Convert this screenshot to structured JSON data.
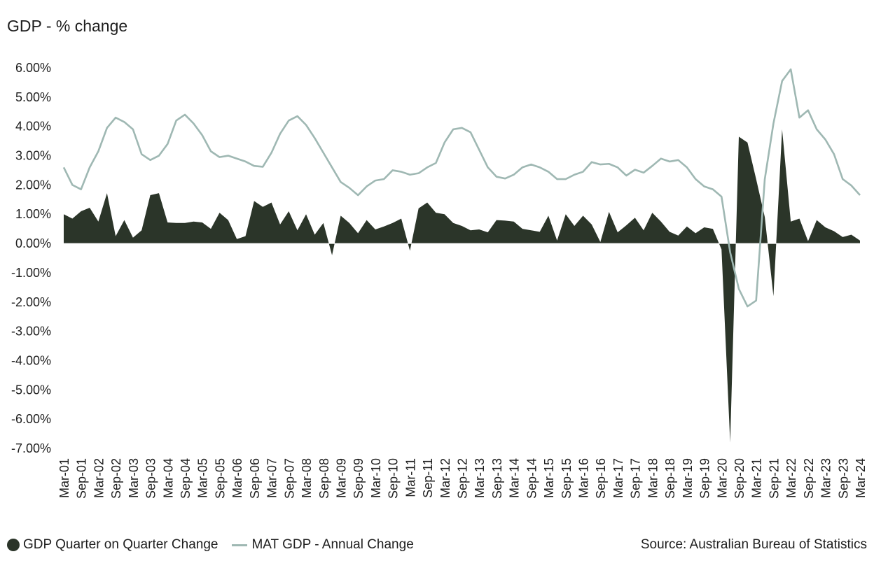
{
  "chart_data": {
    "type": "area",
    "title": "GDP - % change",
    "ylim": [
      -7,
      6
    ],
    "yticks": [
      "6.00%",
      "5.00%",
      "4.00%",
      "3.00%",
      "2.00%",
      "1.00%",
      "0.00%",
      "-1.00%",
      "-2.00%",
      "-3.00%",
      "-4.00%",
      "-5.00%",
      "-6.00%",
      "-7.00%"
    ],
    "ytick_values": [
      6,
      5,
      4,
      3,
      2,
      1,
      0,
      -1,
      -2,
      -3,
      -4,
      -5,
      -6,
      -7
    ],
    "x": [
      "Mar-01",
      "Jun-01",
      "Sep-01",
      "Dec-01",
      "Mar-02",
      "Jun-02",
      "Sep-02",
      "Dec-02",
      "Mar-03",
      "Jun-03",
      "Sep-03",
      "Dec-03",
      "Mar-04",
      "Jun-04",
      "Sep-04",
      "Dec-04",
      "Mar-05",
      "Jun-05",
      "Sep-05",
      "Dec-05",
      "Mar-06",
      "Jun-06",
      "Sep-06",
      "Dec-06",
      "Mar-07",
      "Jun-07",
      "Sep-07",
      "Dec-07",
      "Mar-08",
      "Jun-08",
      "Sep-08",
      "Dec-08",
      "Mar-09",
      "Jun-09",
      "Sep-09",
      "Dec-09",
      "Mar-10",
      "Jun-10",
      "Sep-10",
      "Dec-10",
      "Mar-11",
      "Jun-11",
      "Sep-11",
      "Dec-11",
      "Mar-12",
      "Jun-12",
      "Sep-12",
      "Dec-12",
      "Mar-13",
      "Jun-13",
      "Sep-13",
      "Dec-13",
      "Mar-14",
      "Jun-14",
      "Sep-14",
      "Dec-14",
      "Mar-15",
      "Jun-15",
      "Sep-15",
      "Dec-15",
      "Mar-16",
      "Jun-16",
      "Sep-16",
      "Dec-16",
      "Mar-17",
      "Jun-17",
      "Sep-17",
      "Dec-17",
      "Mar-18",
      "Jun-18",
      "Sep-18",
      "Dec-18",
      "Mar-19",
      "Jun-19",
      "Sep-19",
      "Dec-19",
      "Mar-20",
      "Jun-20",
      "Sep-20",
      "Dec-20",
      "Mar-21",
      "Jun-21",
      "Sep-21",
      "Dec-21",
      "Mar-22",
      "Jun-22",
      "Sep-22",
      "Dec-22",
      "Mar-23",
      "Jun-23",
      "Sep-23",
      "Dec-23",
      "Mar-24"
    ],
    "xtick_labels": [
      "Mar-01",
      "Sep-01",
      "Mar-02",
      "Sep-02",
      "Mar-03",
      "Sep-03",
      "Mar-04",
      "Sep-04",
      "Mar-05",
      "Sep-05",
      "Mar-06",
      "Sep-06",
      "Mar-07",
      "Sep-07",
      "Mar-08",
      "Sep-08",
      "Mar-09",
      "Sep-09",
      "Mar-10",
      "Sep-10",
      "Mar-11",
      "Sep-11",
      "Mar-12",
      "Sep-12",
      "Mar-13",
      "Sep-13",
      "Mar-14",
      "Sep-14",
      "Mar-15",
      "Sep-15",
      "Mar-16",
      "Sep-16",
      "Mar-17",
      "Sep-17",
      "Mar-18",
      "Sep-18",
      "Mar-19",
      "Sep-19",
      "Mar-20",
      "Sep-20",
      "Mar-21",
      "Sep-21",
      "Mar-22",
      "Sep-22",
      "Mar-23",
      "Sep-23",
      "Mar-24"
    ],
    "series": [
      {
        "name": "GDP Quarter on Quarter Change",
        "kind": "area",
        "color": "#2b3529",
        "values": [
          1.0,
          0.85,
          1.1,
          1.22,
          0.75,
          1.72,
          0.25,
          0.8,
          0.2,
          0.45,
          1.65,
          1.72,
          0.72,
          0.7,
          0.7,
          0.75,
          0.72,
          0.5,
          1.05,
          0.8,
          0.15,
          0.25,
          1.45,
          1.25,
          1.4,
          0.65,
          1.1,
          0.45,
          1.0,
          0.3,
          0.7,
          -0.4,
          0.95,
          0.7,
          0.35,
          0.8,
          0.48,
          0.58,
          0.7,
          0.85,
          -0.25,
          1.2,
          1.4,
          1.05,
          1.0,
          0.7,
          0.6,
          0.45,
          0.48,
          0.38,
          0.8,
          0.78,
          0.75,
          0.5,
          0.45,
          0.4,
          0.95,
          0.1,
          1.0,
          0.6,
          0.95,
          0.65,
          0.05,
          1.08,
          0.38,
          0.62,
          0.88,
          0.45,
          1.05,
          0.75,
          0.4,
          0.27,
          0.58,
          0.35,
          0.55,
          0.5,
          -0.2,
          -6.8,
          3.65,
          3.45,
          2.2,
          0.9,
          -1.8,
          3.9,
          0.75,
          0.85,
          0.08,
          0.8,
          0.55,
          0.42,
          0.22,
          0.3,
          0.1
        ]
      },
      {
        "name": "MAT GDP - Annual Change",
        "kind": "line",
        "color": "#9fb8b3",
        "values": [
          2.6,
          2.0,
          1.85,
          2.6,
          3.15,
          3.95,
          4.3,
          4.15,
          3.9,
          3.05,
          2.85,
          3.0,
          3.4,
          4.2,
          4.4,
          4.1,
          3.7,
          3.15,
          2.95,
          3.0,
          2.9,
          2.8,
          2.65,
          2.62,
          3.1,
          3.75,
          4.2,
          4.35,
          4.05,
          3.6,
          3.1,
          2.6,
          2.1,
          1.9,
          1.65,
          1.95,
          2.15,
          2.2,
          2.5,
          2.45,
          2.35,
          2.4,
          2.6,
          2.75,
          3.45,
          3.9,
          3.95,
          3.8,
          3.2,
          2.6,
          2.28,
          2.22,
          2.35,
          2.6,
          2.7,
          2.6,
          2.45,
          2.2,
          2.2,
          2.35,
          2.45,
          2.78,
          2.7,
          2.72,
          2.6,
          2.32,
          2.52,
          2.42,
          2.65,
          2.9,
          2.8,
          2.85,
          2.6,
          2.2,
          1.95,
          1.85,
          1.6,
          -0.3,
          -1.55,
          -2.15,
          -1.95,
          2.2,
          4.1,
          5.55,
          5.95,
          4.3,
          4.55,
          3.9,
          3.55,
          3.05,
          2.2,
          1.98,
          1.65
        ]
      }
    ],
    "grid": false,
    "legend_position": "bottom-left"
  },
  "legend": {
    "item_qoq": "GDP Quarter on Quarter Change",
    "item_mat": "MAT GDP - Annual Change",
    "qoq_color": "#2b3529",
    "mat_color": "#9fb8b3"
  },
  "source_text": "Source: Australian Bureau of Statistics"
}
